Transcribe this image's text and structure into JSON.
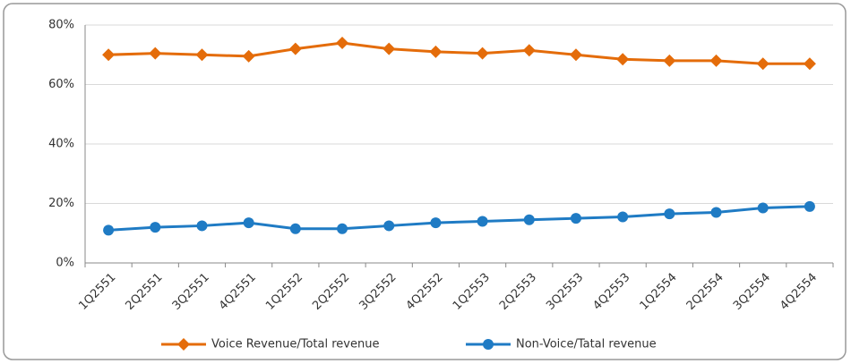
{
  "chart_data": {
    "type": "line",
    "categories": [
      "1Q2551",
      "2Q2551",
      "3Q2551",
      "4Q2551",
      "1Q2552",
      "2Q2552",
      "3Q2552",
      "4Q2552",
      "1Q2553",
      "2Q2553",
      "3Q2553",
      "4Q2553",
      "1Q2554",
      "2Q2554",
      "3Q2554",
      "4Q2554"
    ],
    "series": [
      {
        "name": "Voice Revenue/Total revenue",
        "color": "#e46c0a",
        "marker": "diamond",
        "values": [
          70,
          70.5,
          70,
          69.5,
          72,
          74,
          72,
          71,
          70.5,
          71.5,
          70,
          68.5,
          68,
          68,
          67,
          67
        ]
      },
      {
        "name": "Non-Voice/Tatal revenue",
        "color": "#1f7bc4",
        "marker": "circle",
        "values": [
          11,
          12,
          12.5,
          13.5,
          11.5,
          11.5,
          12.5,
          13.5,
          14,
          14.5,
          15,
          15.5,
          16.5,
          17,
          18.5,
          19
        ]
      }
    ],
    "ylim": [
      0,
      80
    ],
    "yticks": [
      {
        "value": 0,
        "label": "0%"
      },
      {
        "value": 20,
        "label": "20%"
      },
      {
        "value": 40,
        "label": "40%"
      },
      {
        "value": 60,
        "label": "60%"
      },
      {
        "value": 80,
        "label": "80%"
      }
    ],
    "grid": true,
    "legend": "bottom"
  }
}
